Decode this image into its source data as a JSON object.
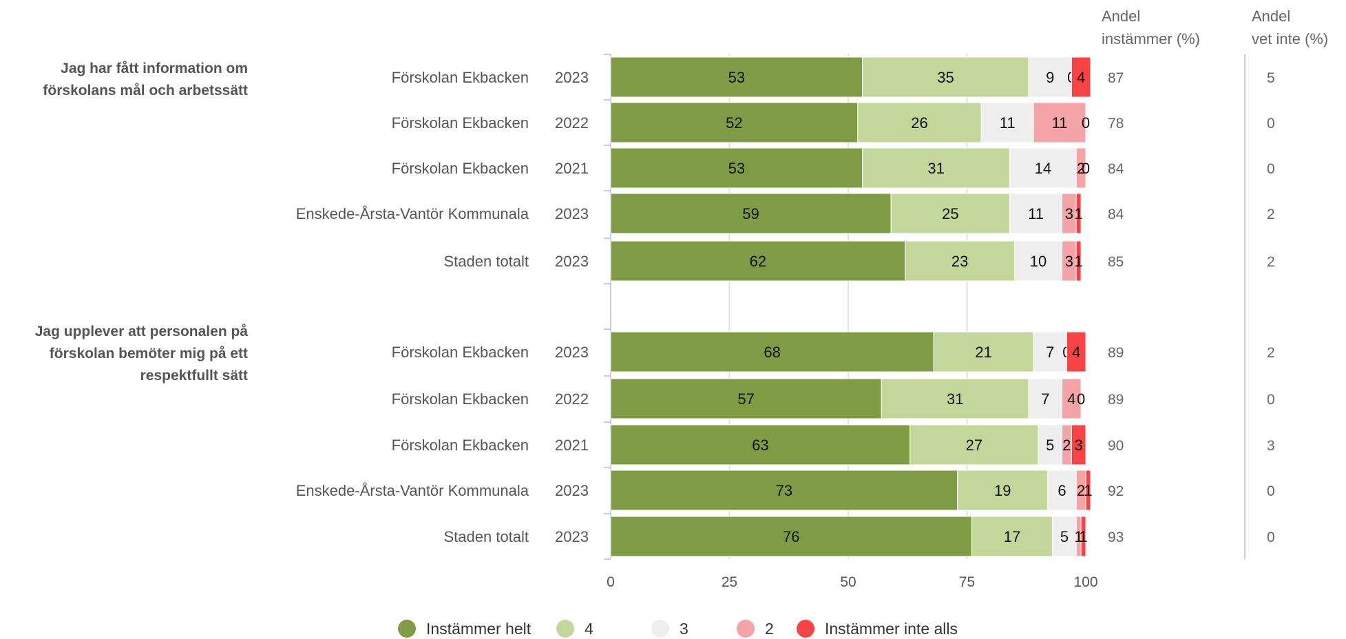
{
  "chart_data": {
    "type": "bar",
    "orientation": "horizontal",
    "stacked": true,
    "xlim": [
      0,
      100
    ],
    "x_ticks": [
      "0",
      "25",
      "50",
      "75",
      "100"
    ],
    "grid": true,
    "legend_position": "bottom",
    "column_headers": {
      "agree_share": [
        "Andel",
        "instämmer (%)"
      ],
      "dont_know_share": [
        "Andel",
        "vet inte (%)"
      ]
    },
    "series": [
      {
        "name": "Instämmer helt",
        "color": "#7f9c44"
      },
      {
        "name": "4",
        "color": "#c3d79b"
      },
      {
        "name": "3",
        "color": "#eeeeee"
      },
      {
        "name": "2",
        "color": "#f4a3a7"
      },
      {
        "name": "Instämmer inte alls",
        "color": "#f74343"
      }
    ],
    "groups": [
      {
        "question": [
          "Jag har fått information om",
          "förskolans mål och arbetssätt"
        ],
        "rows": [
          {
            "unit": "Förskolan Ekbacken",
            "year": "2023",
            "values": [
              53,
              35,
              9,
              0,
              4
            ],
            "agree_share": 87,
            "dont_know_share": 5
          },
          {
            "unit": "Förskolan Ekbacken",
            "year": "2022",
            "values": [
              52,
              26,
              11,
              11,
              0
            ],
            "agree_share": 78,
            "dont_know_share": 0
          },
          {
            "unit": "Förskolan Ekbacken",
            "year": "2021",
            "values": [
              53,
              31,
              14,
              2,
              0
            ],
            "agree_share": 84,
            "dont_know_share": 0
          },
          {
            "unit": "Enskede-Årsta-Vantör Kommunala",
            "year": "2023",
            "values": [
              59,
              25,
              11,
              3,
              1
            ],
            "agree_share": 84,
            "dont_know_share": 2
          },
          {
            "unit": "Staden totalt",
            "year": "2023",
            "values": [
              62,
              23,
              10,
              3,
              1
            ],
            "agree_share": 85,
            "dont_know_share": 2
          }
        ]
      },
      {
        "question": [
          "Jag upplever att personalen på",
          "förskolan bemöter mig på ett",
          "respektfullt sätt"
        ],
        "rows": [
          {
            "unit": "Förskolan Ekbacken",
            "year": "2023",
            "values": [
              68,
              21,
              7,
              0,
              4
            ],
            "agree_share": 89,
            "dont_know_share": 2
          },
          {
            "unit": "Förskolan Ekbacken",
            "year": "2022",
            "values": [
              57,
              31,
              7,
              4,
              0
            ],
            "agree_share": 89,
            "dont_know_share": 0
          },
          {
            "unit": "Förskolan Ekbacken",
            "year": "2021",
            "values": [
              63,
              27,
              5,
              2,
              3
            ],
            "agree_share": 90,
            "dont_know_share": 3
          },
          {
            "unit": "Enskede-Årsta-Vantör Kommunala",
            "year": "2023",
            "values": [
              73,
              19,
              6,
              2,
              1
            ],
            "agree_share": 92,
            "dont_know_share": 0
          },
          {
            "unit": "Staden totalt",
            "year": "2023",
            "values": [
              76,
              17,
              5,
              1,
              1
            ],
            "agree_share": 93,
            "dont_know_share": 0
          }
        ]
      }
    ]
  }
}
